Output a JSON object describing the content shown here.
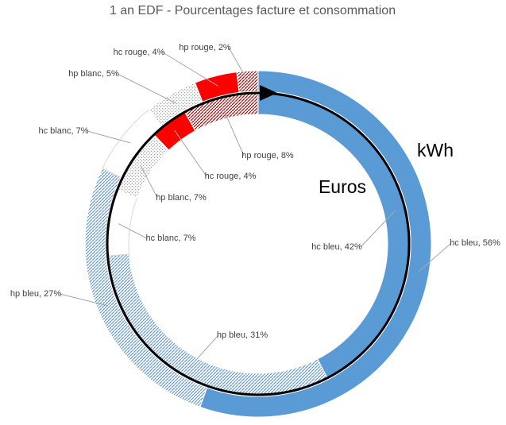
{
  "chart_data": {
    "type": "doughnut",
    "title": "1 an EDF - Pourcentages facture et consommation",
    "categories": [
      "hc bleu",
      "hp bleu",
      "hc blanc",
      "hp blanc",
      "hc rouge",
      "hp rouge"
    ],
    "colors": [
      "#5b9bd5",
      "#5b9bd5",
      "#ffffff",
      "#a6a6a6",
      "#ff0000",
      "#c00000"
    ],
    "series": [
      {
        "name": "kWh",
        "values": [
          56,
          27,
          7,
          5,
          4,
          2
        ],
        "value_labels": [
          "hc bleu, 56%",
          "hp bleu, 27%",
          "hc blanc, 7%",
          "hp blanc, 5%",
          "hc rouge, 4%",
          "hp rouge, 2%"
        ]
      },
      {
        "name": "Euros",
        "values": [
          42,
          31,
          7,
          7,
          4,
          8
        ],
        "value_labels": [
          "hc bleu, 42%",
          "hp bleu, 31%",
          "hc blanc, 7%",
          "hp blanc, 7%",
          "hc rouge, 4%",
          "hp rouge, 8%"
        ]
      }
    ]
  }
}
